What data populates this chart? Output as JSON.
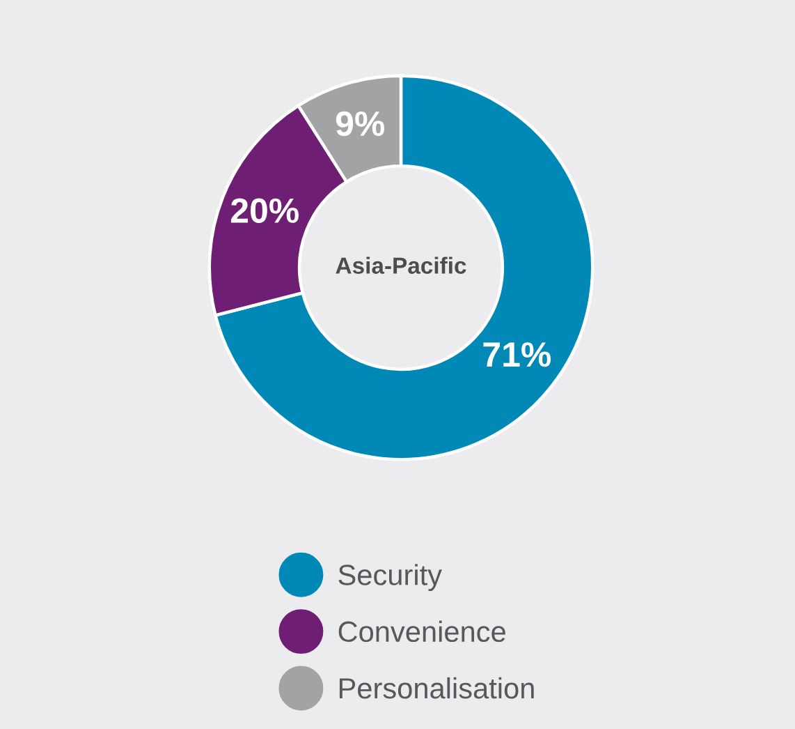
{
  "chart_data": {
    "type": "donut",
    "title": "Asia-Pacific",
    "categories": [
      "Security",
      "Convenience",
      "Personalisation"
    ],
    "values": [
      71,
      20,
      9
    ],
    "colors": [
      "#0089b7",
      "#6e1f73",
      "#a3a3a6"
    ],
    "value_labels": [
      "71%",
      "20%",
      "9%"
    ],
    "legend": "bottom"
  }
}
